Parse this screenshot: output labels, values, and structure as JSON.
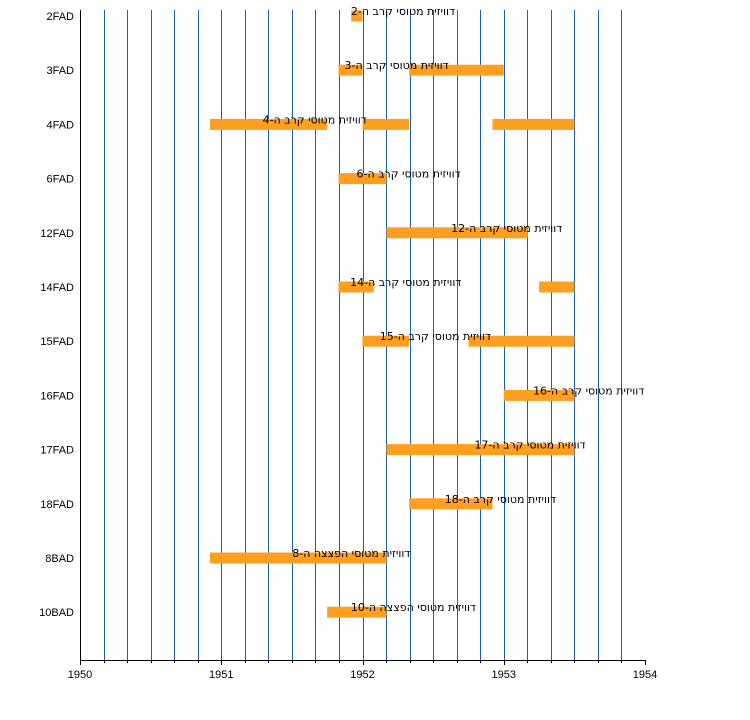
{
  "chart_data": {
    "type": "timeline",
    "x_axis": {
      "range": [
        1950,
        1954
      ],
      "tick_labels": [
        "1950",
        "1951",
        "1952",
        "1953",
        "1954"
      ],
      "minor_divisions_per_year": 6,
      "grid": "vertical"
    },
    "rows": [
      {
        "label": "2FAD",
        "bar_text": "דוויזית מטוסי קרב ה-2",
        "segments": [
          [
            1951.92,
            1952.0
          ]
        ]
      },
      {
        "label": "3FAD",
        "bar_text": "דוויזית מטוסי קרב ה-3",
        "segments": [
          [
            1951.83,
            1952.0
          ],
          [
            1952.33,
            1953.0
          ]
        ]
      },
      {
        "label": "4FAD",
        "bar_text": "דוויזית מטוסי קרב ה-4",
        "segments": [
          [
            1950.92,
            1951.75
          ],
          [
            1952.0,
            1952.33
          ],
          [
            1952.92,
            1953.5
          ]
        ]
      },
      {
        "label": "6FAD",
        "bar_text": "דוויזית מטוסי קרב ה-6",
        "segments": [
          [
            1951.83,
            1952.17
          ]
        ]
      },
      {
        "label": "12FAD",
        "bar_text": "דוויזית מטוסי קרב ה-12",
        "segments": [
          [
            1952.17,
            1953.17
          ]
        ]
      },
      {
        "label": "14FAD",
        "bar_text": "דוויזית מטוסי קרב ה-14",
        "segments": [
          [
            1951.83,
            1952.08
          ],
          [
            1953.25,
            1953.5
          ]
        ]
      },
      {
        "label": "15FAD",
        "bar_text": "דוויזית מטוסי קרב ה-15",
        "segments": [
          [
            1952.0,
            1952.33
          ],
          [
            1952.75,
            1953.5
          ]
        ]
      },
      {
        "label": "16FAD",
        "bar_text": "דוויזית מטוסי קרב ה-16",
        "segments": [
          [
            1953.0,
            1953.5
          ]
        ]
      },
      {
        "label": "17FAD",
        "bar_text": "דוויזית מטוסי קרב ה-17",
        "segments": [
          [
            1952.17,
            1953.5
          ]
        ]
      },
      {
        "label": "18FAD",
        "bar_text": "דוויזית מטוסי קרב ה-18",
        "segments": [
          [
            1952.33,
            1952.92
          ]
        ]
      },
      {
        "label": "8BAD",
        "bar_text": "דוויזית מטוסי הפצצה ה-8",
        "segments": [
          [
            1950.92,
            1952.17
          ]
        ]
      },
      {
        "label": "10BAD",
        "bar_text": "דוויזית מטוסי הפצצה ה-10",
        "segments": [
          [
            1951.75,
            1952.17
          ]
        ]
      }
    ],
    "colors": {
      "bar": "#ff9f21",
      "grid": "#1f5fa8",
      "axis": "#000000"
    }
  }
}
